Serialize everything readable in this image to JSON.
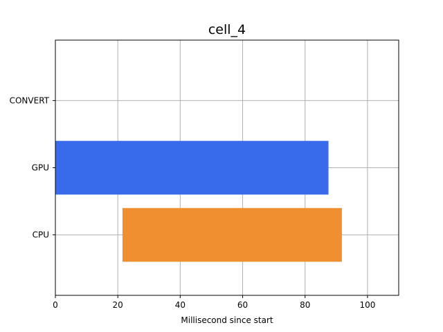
{
  "chart_data": {
    "type": "bar",
    "orientation": "horizontal",
    "title": "cell_4",
    "xlabel": "Millisecond since start",
    "ylabel": "",
    "xlim": [
      0,
      110
    ],
    "xticks": [
      0,
      20,
      40,
      60,
      80,
      100
    ],
    "grid": true,
    "categories": [
      "CPU",
      "GPU",
      "CONVERT"
    ],
    "bars": [
      {
        "category": "CPU",
        "start": 21.5,
        "end": 91.8,
        "color": "#ef8f2f"
      },
      {
        "category": "GPU",
        "start": 0,
        "end": 87.5,
        "color": "#386bec"
      }
    ]
  }
}
